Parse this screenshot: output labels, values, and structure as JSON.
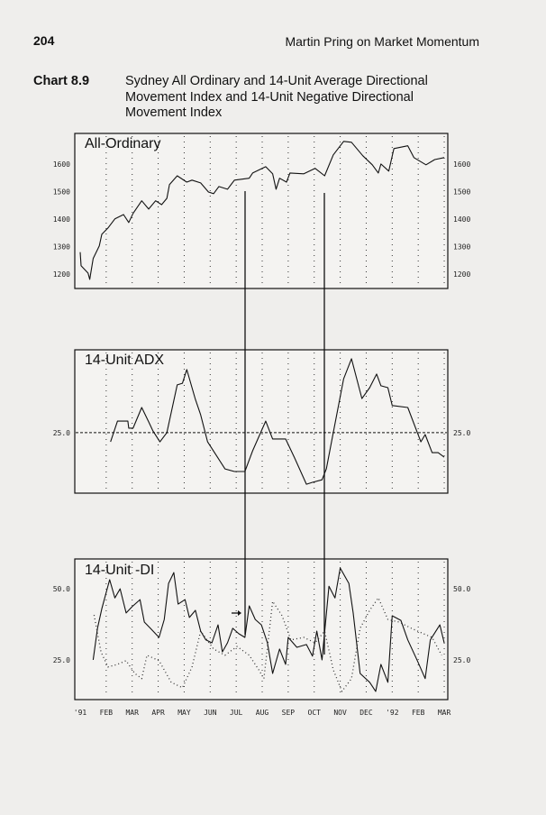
{
  "page": {
    "number": "204",
    "running_head": "Martin Pring on Market Momentum",
    "caption_label": "Chart 8.9",
    "caption_text": "Sydney All Ordinary and 14-Unit Average Directional Movement Index and 14-Unit Negative Directional Movement Index"
  },
  "x_axis": {
    "tick_labels": [
      "'91",
      "FEB",
      "MAR",
      "APR",
      "MAY",
      "JUN",
      "JUL",
      "AUG",
      "SEP",
      "OCT",
      "NOV",
      "DEC",
      "'92",
      "FEB",
      "MAR"
    ],
    "range": [
      "1991-01-01",
      "1992-03-01"
    ]
  },
  "chart_data": [
    {
      "type": "line",
      "title": "All-Ordinary",
      "ylim": [
        1147,
        1711
      ],
      "y_ticks": [
        1200,
        1300,
        1400,
        1500,
        1600
      ],
      "y_tick_labels": [
        "1200",
        "1300",
        "1400",
        "1500",
        "1600"
      ],
      "grid": "vertical dotted at month starts",
      "series": [
        {
          "style": "solid",
          "color": "#111111",
          "points": [
            [
              "1991-01-01",
              1279
            ],
            [
              "1991-01-02",
              1230
            ],
            [
              "1991-01-10",
              1203
            ],
            [
              "1991-01-12",
              1180
            ],
            [
              "1991-01-16",
              1256
            ],
            [
              "1991-01-23",
              1302
            ],
            [
              "1991-01-26",
              1344
            ],
            [
              "1991-02-03",
              1367
            ],
            [
              "1991-02-11",
              1400
            ],
            [
              "1991-02-21",
              1416
            ],
            [
              "1991-02-27",
              1387
            ],
            [
              "1991-03-02",
              1420
            ],
            [
              "1991-03-12",
              1466
            ],
            [
              "1991-03-20",
              1436
            ],
            [
              "1991-03-28",
              1466
            ],
            [
              "1991-04-05",
              1452
            ],
            [
              "1991-04-11",
              1475
            ],
            [
              "1991-04-14",
              1525
            ],
            [
              "1991-04-23",
              1557
            ],
            [
              "1991-05-04",
              1534
            ],
            [
              "1991-05-10",
              1541
            ],
            [
              "1991-05-20",
              1531
            ],
            [
              "1991-05-29",
              1498
            ],
            [
              "1991-06-05",
              1492
            ],
            [
              "1991-06-11",
              1518
            ],
            [
              "1991-06-21",
              1508
            ],
            [
              "1991-06-29",
              1541
            ],
            [
              "1991-07-16",
              1548
            ],
            [
              "1991-07-20",
              1567
            ],
            [
              "1991-08-05",
              1590
            ],
            [
              "1991-08-13",
              1564
            ],
            [
              "1991-08-17",
              1508
            ],
            [
              "1991-08-21",
              1548
            ],
            [
              "1991-08-29",
              1534
            ],
            [
              "1991-09-03",
              1567
            ],
            [
              "1991-09-19",
              1564
            ],
            [
              "1991-10-02",
              1584
            ],
            [
              "1991-10-13",
              1557
            ],
            [
              "1991-10-23",
              1633
            ],
            [
              "1991-11-05",
              1682
            ],
            [
              "1991-11-14",
              1679
            ],
            [
              "1991-11-27",
              1630
            ],
            [
              "1991-12-08",
              1597
            ],
            [
              "1991-12-15",
              1567
            ],
            [
              "1991-12-18",
              1600
            ],
            [
              "1991-12-27",
              1574
            ],
            [
              "1992-01-03",
              1656
            ],
            [
              "1992-01-19",
              1666
            ],
            [
              "1992-01-26",
              1623
            ],
            [
              "1992-02-10",
              1597
            ],
            [
              "1992-02-20",
              1616
            ],
            [
              "1992-03-01",
              1623
            ]
          ]
        }
      ]
    },
    {
      "type": "line",
      "title": "14-Unit ADX",
      "ylim": [
        6,
        51
      ],
      "y_ticks": [
        25
      ],
      "y_tick_labels": [
        "25.0"
      ],
      "reference_line": {
        "value": 25,
        "style": "dashed"
      },
      "series": [
        {
          "style": "solid",
          "color": "#111111",
          "points": [
            [
              "1991-02-06",
              22.1
            ],
            [
              "1991-02-14",
              28.6
            ],
            [
              "1991-02-21",
              28.6
            ],
            [
              "1991-02-26",
              28.6
            ],
            [
              "1991-02-27",
              26.4
            ],
            [
              "1991-03-02",
              26.4
            ],
            [
              "1991-03-12",
              32.9
            ],
            [
              "1991-03-20",
              28.4
            ],
            [
              "1991-03-25",
              25.5
            ],
            [
              "1991-04-03",
              22.1
            ],
            [
              "1991-04-11",
              25.0
            ],
            [
              "1991-04-23",
              40.0
            ],
            [
              "1991-04-29",
              40.5
            ],
            [
              "1991-05-04",
              44.8
            ],
            [
              "1991-05-14",
              35.4
            ],
            [
              "1991-05-20",
              30.6
            ],
            [
              "1991-05-28",
              22.1
            ],
            [
              "1991-06-10",
              17.0
            ],
            [
              "1991-06-18",
              13.6
            ],
            [
              "1991-06-29",
              12.8
            ],
            [
              "1991-07-11",
              12.8
            ],
            [
              "1991-07-20",
              19.3
            ],
            [
              "1991-08-05",
              28.6
            ],
            [
              "1991-08-13",
              23.0
            ],
            [
              "1991-08-28",
              23.0
            ],
            [
              "1991-09-08",
              17.3
            ],
            [
              "1991-09-22",
              8.8
            ],
            [
              "1991-09-29",
              9.4
            ],
            [
              "1991-10-10",
              10.2
            ],
            [
              "1991-10-15",
              13.6
            ],
            [
              "1991-10-23",
              25.0
            ],
            [
              "1991-11-05",
              41.9
            ],
            [
              "1991-11-14",
              48.2
            ],
            [
              "1991-11-26",
              35.7
            ],
            [
              "1991-12-05",
              39.1
            ],
            [
              "1991-12-13",
              43.4
            ],
            [
              "1991-12-18",
              39.7
            ],
            [
              "1991-12-26",
              39.1
            ],
            [
              "1991-12-31",
              33.5
            ],
            [
              "1992-01-19",
              32.9
            ],
            [
              "1992-02-04",
              22.1
            ],
            [
              "1992-02-09",
              24.4
            ],
            [
              "1992-02-17",
              18.7
            ],
            [
              "1992-02-24",
              18.7
            ],
            [
              "1992-03-01",
              17.3
            ]
          ]
        }
      ]
    },
    {
      "type": "line",
      "title": "14-Unit -DI",
      "ylim": [
        11,
        60.5
      ],
      "y_ticks": [
        25,
        50
      ],
      "y_tick_labels": [
        "25.0",
        "50.0"
      ],
      "series": [
        {
          "style": "solid",
          "color": "#111111",
          "points": [
            [
              "1991-01-16",
              25.0
            ],
            [
              "1991-01-21",
              36.1
            ],
            [
              "1991-01-26",
              43.0
            ],
            [
              "1991-02-05",
              53.2
            ],
            [
              "1991-02-11",
              46.8
            ],
            [
              "1991-02-17",
              50.0
            ],
            [
              "1991-02-24",
              41.5
            ],
            [
              "1991-03-01",
              43.7
            ],
            [
              "1991-03-10",
              46.2
            ],
            [
              "1991-03-15",
              38.3
            ],
            [
              "1991-03-22",
              36.1
            ],
            [
              "1991-04-02",
              32.9
            ],
            [
              "1991-04-08",
              39.2
            ],
            [
              "1991-04-13",
              51.9
            ],
            [
              "1991-04-19",
              55.7
            ],
            [
              "1991-04-24",
              44.6
            ],
            [
              "1991-05-02",
              46.2
            ],
            [
              "1991-05-07",
              39.9
            ],
            [
              "1991-05-14",
              42.4
            ],
            [
              "1991-05-20",
              35.1
            ],
            [
              "1991-05-26",
              32.0
            ],
            [
              "1991-06-03",
              31.0
            ],
            [
              "1991-06-10",
              37.3
            ],
            [
              "1991-06-15",
              27.8
            ],
            [
              "1991-06-21",
              31.0
            ],
            [
              "1991-06-27",
              36.1
            ],
            [
              "1991-07-04",
              34.2
            ],
            [
              "1991-07-11",
              32.9
            ],
            [
              "1991-07-16",
              44.0
            ],
            [
              "1991-07-23",
              39.2
            ],
            [
              "1991-07-30",
              37.3
            ],
            [
              "1991-08-07",
              31.0
            ],
            [
              "1991-08-13",
              20.2
            ],
            [
              "1991-08-21",
              28.8
            ],
            [
              "1991-08-28",
              23.4
            ],
            [
              "1991-09-01",
              32.9
            ],
            [
              "1991-09-11",
              29.4
            ],
            [
              "1991-09-22",
              30.4
            ],
            [
              "1991-09-29",
              26.3
            ],
            [
              "1991-10-04",
              35.1
            ],
            [
              "1991-10-10",
              25.0
            ],
            [
              "1991-10-18",
              50.9
            ],
            [
              "1991-10-25",
              46.8
            ],
            [
              "1991-11-01",
              57.3
            ],
            [
              "1991-11-11",
              51.9
            ],
            [
              "1991-11-16",
              41.5
            ],
            [
              "1991-11-24",
              20.2
            ],
            [
              "1991-12-05",
              17.1
            ],
            [
              "1991-12-12",
              13.9
            ],
            [
              "1991-12-18",
              23.4
            ],
            [
              "1991-12-26",
              17.1
            ],
            [
              "1991-12-31",
              40.5
            ],
            [
              "1992-01-11",
              38.9
            ],
            [
              "1992-01-19",
              32.0
            ],
            [
              "1992-01-30",
              24.7
            ],
            [
              "1992-02-09",
              18.4
            ],
            [
              "1992-02-15",
              32.0
            ],
            [
              "1992-02-26",
              37.3
            ],
            [
              "1992-03-01",
              31.0
            ]
          ]
        },
        {
          "style": "dotted",
          "color": "#333333",
          "points": [
            [
              "1991-01-17",
              40.8
            ],
            [
              "1991-01-25",
              27.8
            ],
            [
              "1991-02-03",
              22.5
            ],
            [
              "1991-02-14",
              23.4
            ],
            [
              "1991-02-24",
              24.7
            ],
            [
              "1991-03-04",
              20.2
            ],
            [
              "1991-03-12",
              18.4
            ],
            [
              "1991-03-18",
              26.6
            ],
            [
              "1991-04-02",
              24.7
            ],
            [
              "1991-04-16",
              17.1
            ],
            [
              "1991-04-29",
              15.2
            ],
            [
              "1991-05-10",
              22.5
            ],
            [
              "1991-05-20",
              35.1
            ],
            [
              "1991-06-05",
              28.8
            ],
            [
              "1991-06-18",
              26.6
            ],
            [
              "1991-07-02",
              29.7
            ],
            [
              "1991-07-16",
              26.6
            ],
            [
              "1991-07-27",
              21.5
            ],
            [
              "1991-08-03",
              18.4
            ],
            [
              "1991-08-13",
              45.6
            ],
            [
              "1991-08-24",
              40.5
            ],
            [
              "1991-09-04",
              32.0
            ],
            [
              "1991-09-19",
              32.9
            ],
            [
              "1991-10-02",
              31.0
            ],
            [
              "1991-10-13",
              35.1
            ],
            [
              "1991-10-23",
              21.5
            ],
            [
              "1991-11-03",
              13.9
            ],
            [
              "1991-11-14",
              18.4
            ],
            [
              "1991-11-24",
              36.1
            ],
            [
              "1991-12-05",
              42.4
            ],
            [
              "1991-12-15",
              46.8
            ],
            [
              "1991-12-26",
              39.2
            ],
            [
              "1992-01-09",
              38.3
            ],
            [
              "1992-01-23",
              36.1
            ],
            [
              "1992-02-07",
              34.2
            ],
            [
              "1992-02-17",
              32.9
            ],
            [
              "1992-02-28",
              26.6
            ]
          ]
        }
      ]
    }
  ]
}
